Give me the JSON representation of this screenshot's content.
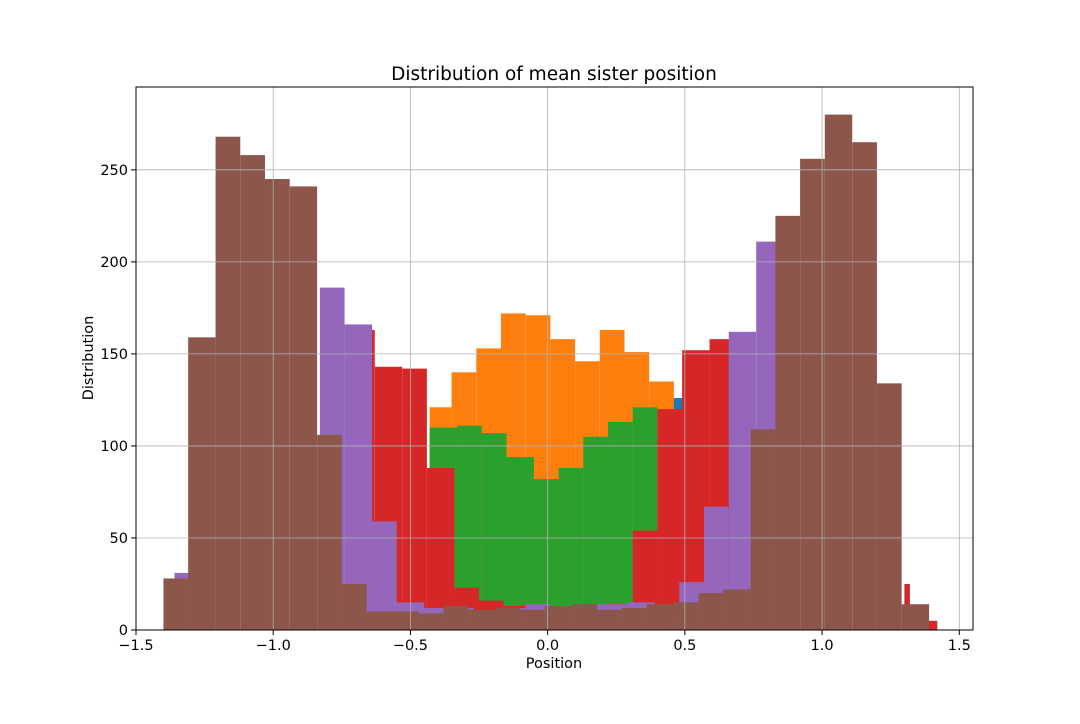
{
  "chart_data": {
    "type": "bar",
    "title": "Distribution of mean sister position",
    "xlabel": "Position",
    "ylabel": "Distribution",
    "xlim": [
      -1.5,
      1.55
    ],
    "ylim": [
      0,
      295
    ],
    "xticks": [
      {
        "value": -1.5,
        "label": "−1.5"
      },
      {
        "value": -1.0,
        "label": "−1.0"
      },
      {
        "value": -0.5,
        "label": "−0.5"
      },
      {
        "value": 0.0,
        "label": "0.0"
      },
      {
        "value": 0.5,
        "label": "0.5"
      },
      {
        "value": 1.0,
        "label": "1.0"
      },
      {
        "value": 1.5,
        "label": "1.5"
      }
    ],
    "yticks": [
      {
        "value": 0,
        "label": "0"
      },
      {
        "value": 50,
        "label": "50"
      },
      {
        "value": 100,
        "label": "100"
      },
      {
        "value": 150,
        "label": "150"
      },
      {
        "value": 200,
        "label": "200"
      },
      {
        "value": 250,
        "label": "250"
      }
    ],
    "grid": true,
    "series": [
      {
        "color": "#1f77b4",
        "bins": [
          [
            -0.36,
            -0.28,
            10
          ],
          [
            -0.28,
            -0.18,
            10
          ],
          [
            -0.18,
            -0.08,
            10
          ],
          [
            -0.08,
            0.02,
            10
          ],
          [
            0.02,
            0.12,
            10
          ],
          [
            0.12,
            0.22,
            10
          ],
          [
            0.22,
            0.32,
            10
          ],
          [
            0.32,
            0.42,
            10
          ],
          [
            0.42,
            0.5,
            126
          ]
        ]
      },
      {
        "color": "#ff7f0e",
        "bins": [
          [
            -0.43,
            -0.35,
            121
          ],
          [
            -0.35,
            -0.26,
            140
          ],
          [
            -0.26,
            -0.17,
            153
          ],
          [
            -0.17,
            -0.08,
            172
          ],
          [
            -0.08,
            0.01,
            171
          ],
          [
            0.01,
            0.1,
            158
          ],
          [
            0.1,
            0.19,
            146
          ],
          [
            0.19,
            0.28,
            163
          ],
          [
            0.28,
            0.37,
            151
          ],
          [
            0.37,
            0.46,
            135
          ],
          [
            0.46,
            0.55,
            10
          ]
        ]
      },
      {
        "color": "#2ca02c",
        "bins": [
          [
            -0.43,
            -0.33,
            110
          ],
          [
            -0.33,
            -0.24,
            111
          ],
          [
            -0.24,
            -0.15,
            107
          ],
          [
            -0.15,
            -0.05,
            94
          ],
          [
            -0.05,
            0.04,
            82
          ],
          [
            0.04,
            0.13,
            88
          ],
          [
            0.13,
            0.22,
            105
          ],
          [
            0.22,
            0.31,
            113
          ],
          [
            0.31,
            0.4,
            121
          ]
        ]
      },
      {
        "color": "#d62728",
        "bins": [
          [
            -0.72,
            -0.63,
            163
          ],
          [
            -0.63,
            -0.53,
            143
          ],
          [
            -0.53,
            -0.44,
            142
          ],
          [
            -0.44,
            -0.34,
            88
          ],
          [
            -0.34,
            -0.25,
            23
          ],
          [
            -0.25,
            -0.16,
            16
          ],
          [
            -0.16,
            -0.07,
            13
          ],
          [
            -0.07,
            0.03,
            13
          ],
          [
            0.03,
            0.12,
            13
          ],
          [
            0.12,
            0.21,
            13
          ],
          [
            0.21,
            0.31,
            14
          ],
          [
            0.31,
            0.4,
            54
          ],
          [
            0.4,
            0.49,
            120
          ],
          [
            0.49,
            0.59,
            152
          ],
          [
            0.59,
            0.68,
            158
          ],
          [
            1.3,
            1.32,
            25
          ],
          [
            1.32,
            1.42,
            5
          ]
        ]
      },
      {
        "color": "#9467bd",
        "bins": [
          [
            -1.36,
            -1.28,
            31
          ],
          [
            -0.83,
            -0.74,
            186
          ],
          [
            -0.74,
            -0.64,
            166
          ],
          [
            -0.64,
            -0.55,
            59
          ],
          [
            -0.55,
            -0.45,
            15
          ],
          [
            -0.45,
            -0.36,
            12
          ],
          [
            -0.36,
            -0.27,
            12
          ],
          [
            -0.27,
            -0.17,
            9
          ],
          [
            -0.17,
            -0.08,
            12
          ],
          [
            -0.08,
            0.01,
            14
          ],
          [
            0.01,
            0.11,
            12
          ],
          [
            0.11,
            0.2,
            14
          ],
          [
            0.2,
            0.29,
            14
          ],
          [
            0.29,
            0.39,
            15
          ],
          [
            0.39,
            0.48,
            10
          ],
          [
            0.48,
            0.57,
            26
          ],
          [
            0.57,
            0.66,
            67
          ],
          [
            0.66,
            0.76,
            162
          ],
          [
            0.76,
            0.85,
            211
          ]
        ]
      },
      {
        "color": "#8c564b",
        "bins": [
          [
            -1.4,
            -1.31,
            28
          ],
          [
            -1.31,
            -1.21,
            159
          ],
          [
            -1.21,
            -1.12,
            268
          ],
          [
            -1.12,
            -1.03,
            258
          ],
          [
            -1.03,
            -0.94,
            245
          ],
          [
            -0.94,
            -0.84,
            241
          ],
          [
            -0.84,
            -0.75,
            106
          ],
          [
            -0.75,
            -0.66,
            25
          ],
          [
            -0.66,
            -0.56,
            10
          ],
          [
            -0.56,
            -0.47,
            10
          ],
          [
            -0.47,
            -0.38,
            9
          ],
          [
            -0.38,
            -0.29,
            13
          ],
          [
            -0.29,
            -0.19,
            11
          ],
          [
            -0.19,
            -0.1,
            12
          ],
          [
            -0.1,
            -0.01,
            11
          ],
          [
            -0.01,
            0.09,
            13
          ],
          [
            0.09,
            0.18,
            14
          ],
          [
            0.18,
            0.27,
            11
          ],
          [
            0.27,
            0.36,
            12
          ],
          [
            0.36,
            0.46,
            14
          ],
          [
            0.46,
            0.55,
            15
          ],
          [
            0.55,
            0.64,
            20
          ],
          [
            0.64,
            0.74,
            22
          ],
          [
            0.74,
            0.83,
            109
          ],
          [
            0.83,
            0.92,
            225
          ],
          [
            0.92,
            1.01,
            256
          ],
          [
            1.01,
            1.11,
            280
          ],
          [
            1.11,
            1.2,
            265
          ],
          [
            1.2,
            1.29,
            134
          ],
          [
            1.29,
            1.39,
            14
          ]
        ]
      }
    ]
  }
}
